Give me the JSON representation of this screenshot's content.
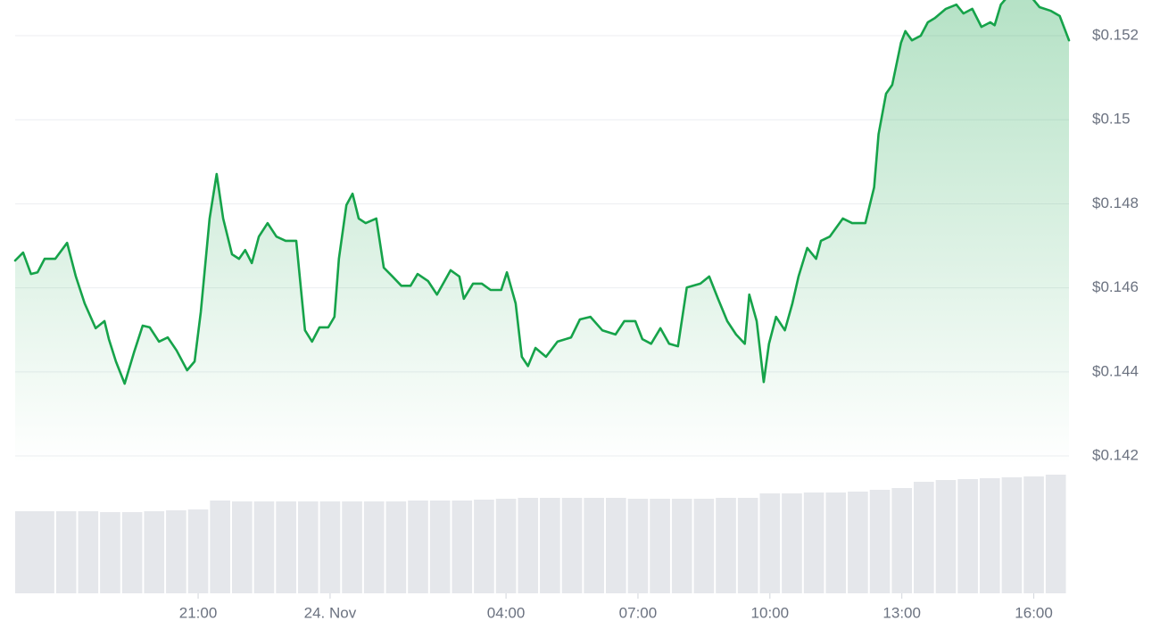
{
  "chart_data": {
    "type": "line",
    "x": [
      -7.16,
      -6.98,
      -6.8,
      -6.65,
      -6.49,
      -6.25,
      -5.98,
      -5.78,
      -5.58,
      -5.33,
      -5.13,
      -5.03,
      -4.87,
      -4.67,
      -4.46,
      -4.26,
      -4.1,
      -3.89,
      -3.69,
      -3.49,
      -3.25,
      -3.08,
      -2.94,
      -2.74,
      -2.58,
      -2.43,
      -2.23,
      -2.07,
      -1.93,
      -1.78,
      -1.62,
      -1.42,
      -1.22,
      -1.01,
      -0.77,
      -0.57,
      -0.41,
      -0.24,
      -0.04,
      0.1,
      0.2,
      0.37,
      0.51,
      0.65,
      0.81,
      1.05,
      1.22,
      1.42,
      1.62,
      1.83,
      1.99,
      2.23,
      2.43,
      2.74,
      2.94,
      3.04,
      3.25,
      3.45,
      3.65,
      3.89,
      4.02,
      4.22,
      4.36,
      4.5,
      4.67,
      4.91,
      5.17,
      5.48,
      5.68,
      5.92,
      6.19,
      6.49,
      6.69,
      6.94,
      7.1,
      7.3,
      7.51,
      7.71,
      7.91,
      8.11,
      8.42,
      8.62,
      8.82,
      9.03,
      9.23,
      9.43,
      9.53,
      9.7,
      9.86,
      9.98,
      10.14,
      10.34,
      10.51,
      10.65,
      10.85,
      11.05,
      11.16,
      11.36,
      11.66,
      11.87,
      12.17,
      12.37,
      12.47,
      12.64,
      12.78,
      12.98,
      13.08,
      13.23,
      13.43,
      13.59,
      13.75,
      14.0,
      14.24,
      14.4,
      14.6,
      14.81,
      15.01,
      15.11,
      15.25,
      15.42,
      15.92,
      16.13,
      16.39,
      16.59,
      16.8
    ],
    "series": [
      {
        "color": "#16a34a",
        "values": [
          0.14665,
          0.14684,
          0.14633,
          0.14637,
          0.14669,
          0.14669,
          0.14707,
          0.14627,
          0.14563,
          0.14504,
          0.14521,
          0.14478,
          0.14425,
          0.14372,
          0.14446,
          0.1451,
          0.14506,
          0.14472,
          0.14482,
          0.14451,
          0.14404,
          0.14425,
          0.14542,
          0.14765,
          0.14871,
          0.14765,
          0.1468,
          0.14669,
          0.1469,
          0.14659,
          0.14722,
          0.14754,
          0.14722,
          0.14712,
          0.14712,
          0.14499,
          0.14472,
          0.14506,
          0.14506,
          0.14531,
          0.14669,
          0.14797,
          0.14824,
          0.14765,
          0.14754,
          0.14765,
          0.14648,
          0.14627,
          0.14605,
          0.14605,
          0.14633,
          0.14616,
          0.14584,
          0.14642,
          0.14627,
          0.14574,
          0.1461,
          0.1461,
          0.14595,
          0.14595,
          0.14637,
          0.14563,
          0.14436,
          0.14414,
          0.14457,
          0.14436,
          0.14472,
          0.14482,
          0.14525,
          0.14531,
          0.14499,
          0.14489,
          0.14521,
          0.14521,
          0.14478,
          0.14467,
          0.14504,
          0.14467,
          0.14461,
          0.14601,
          0.1461,
          0.14627,
          0.14574,
          0.14521,
          0.14489,
          0.14467,
          0.14584,
          0.14521,
          0.14376,
          0.14467,
          0.14531,
          0.14499,
          0.14563,
          0.14627,
          0.14695,
          0.14669,
          0.14712,
          0.14722,
          0.14765,
          0.14754,
          0.14754,
          0.14839,
          0.14966,
          0.15062,
          0.15083,
          0.15183,
          0.15211,
          0.15189,
          0.152,
          0.15232,
          0.15242,
          0.15264,
          0.15274,
          0.15253,
          0.15264,
          0.15221,
          0.15232,
          0.15225,
          0.15274,
          0.15295,
          0.15295,
          0.15268,
          0.15259,
          0.15247,
          0.15189
        ]
      }
    ],
    "volume": {
      "color": "#e5e7eb",
      "axis": "y2",
      "x": [
        -7.0,
        -6.5,
        -6.0,
        -5.5,
        -5.0,
        -4.5,
        -4.0,
        -3.5,
        -3.0,
        -2.5,
        -2.0,
        -1.5,
        -1.0,
        -0.5,
        0.0,
        0.5,
        1.0,
        1.5,
        2.0,
        2.5,
        3.0,
        3.5,
        4.0,
        4.5,
        5.0,
        5.5,
        6.0,
        6.5,
        7.0,
        7.5,
        8.0,
        8.5,
        9.0,
        9.5,
        10.0,
        10.5,
        11.0,
        11.5,
        12.0,
        12.5,
        13.0,
        13.5,
        14.0,
        14.5,
        15.0,
        15.5,
        16.0,
        16.5
      ],
      "values": [
        92,
        92,
        92,
        92,
        91,
        91,
        92,
        93,
        94,
        104,
        103,
        103,
        103,
        103,
        103,
        103,
        103,
        103,
        104,
        104,
        104,
        105,
        106,
        107,
        107,
        107,
        107,
        107,
        106,
        106,
        106,
        106,
        107,
        107,
        112,
        112,
        113,
        113,
        114,
        116,
        118,
        125,
        127,
        128,
        129,
        130,
        131,
        133
      ]
    },
    "xlim": [
      -7.16,
      16.8
    ],
    "xticks": [
      {
        "value": -3,
        "label": "21:00"
      },
      {
        "value": 0,
        "label": "24. Nov"
      },
      {
        "value": 4,
        "label": "04:00"
      },
      {
        "value": 7,
        "label": "07:00"
      },
      {
        "value": 10,
        "label": "10:00"
      },
      {
        "value": 13,
        "label": "13:00"
      },
      {
        "value": 16,
        "label": "16:00"
      }
    ],
    "ylim": [
      0.14181,
      0.15285
    ],
    "yticks": [
      {
        "value": 0.142,
        "label": "$0.142"
      },
      {
        "value": 0.144,
        "label": "$0.144"
      },
      {
        "value": 0.146,
        "label": "$0.146"
      },
      {
        "value": 0.148,
        "label": "$0.148"
      },
      {
        "value": 0.15,
        "label": "$0.15"
      },
      {
        "value": 0.152,
        "label": "$0.152"
      }
    ],
    "y2lim": [
      0,
      140
    ],
    "grid": true
  }
}
